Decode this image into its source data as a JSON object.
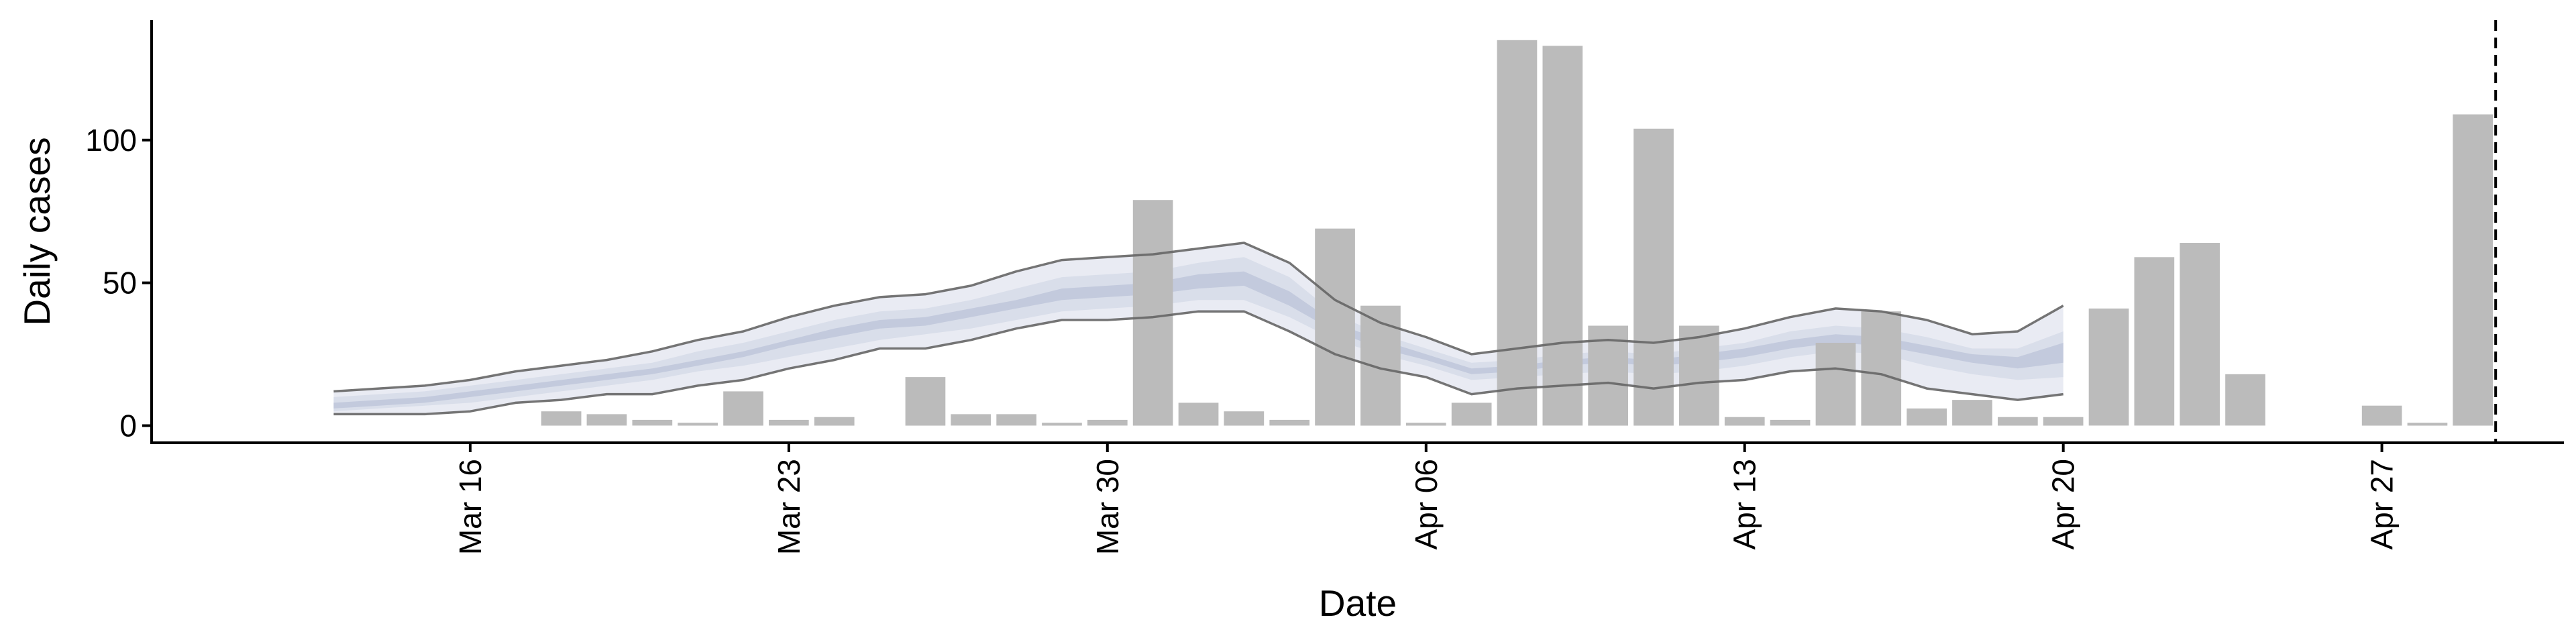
{
  "chart_data": {
    "type": "bar",
    "xlabel": "Date",
    "ylabel": "Daily cases",
    "x_range": [
      "2020-03-09",
      "2020-05-01"
    ],
    "ylim": [
      -6,
      142
    ],
    "y_ticks": [
      0,
      50,
      100
    ],
    "x_ticks": [
      {
        "date": "2020-03-16",
        "label": "Mar 16"
      },
      {
        "date": "2020-03-23",
        "label": "Mar 23"
      },
      {
        "date": "2020-03-30",
        "label": "Mar 30"
      },
      {
        "date": "2020-04-06",
        "label": "Apr 06"
      },
      {
        "date": "2020-04-13",
        "label": "Apr 13"
      },
      {
        "date": "2020-04-20",
        "label": "Apr 20"
      },
      {
        "date": "2020-04-27",
        "label": "Apr 27"
      }
    ],
    "bar_color": "#bbbbbb",
    "bars": [
      {
        "date": "2020-03-18",
        "value": 5
      },
      {
        "date": "2020-03-19",
        "value": 4
      },
      {
        "date": "2020-03-20",
        "value": 2
      },
      {
        "date": "2020-03-21",
        "value": 1
      },
      {
        "date": "2020-03-22",
        "value": 12
      },
      {
        "date": "2020-03-23",
        "value": 2
      },
      {
        "date": "2020-03-24",
        "value": 3
      },
      {
        "date": "2020-03-26",
        "value": 17
      },
      {
        "date": "2020-03-27",
        "value": 4
      },
      {
        "date": "2020-03-28",
        "value": 4
      },
      {
        "date": "2020-03-29",
        "value": 1
      },
      {
        "date": "2020-03-30",
        "value": 2
      },
      {
        "date": "2020-03-31",
        "value": 79
      },
      {
        "date": "2020-04-01",
        "value": 8
      },
      {
        "date": "2020-04-02",
        "value": 5
      },
      {
        "date": "2020-04-03",
        "value": 2
      },
      {
        "date": "2020-04-04",
        "value": 69
      },
      {
        "date": "2020-04-05",
        "value": 42
      },
      {
        "date": "2020-04-06",
        "value": 1
      },
      {
        "date": "2020-04-07",
        "value": 8
      },
      {
        "date": "2020-04-08",
        "value": 135
      },
      {
        "date": "2020-04-09",
        "value": 133
      },
      {
        "date": "2020-04-10",
        "value": 35
      },
      {
        "date": "2020-04-11",
        "value": 104
      },
      {
        "date": "2020-04-12",
        "value": 35
      },
      {
        "date": "2020-04-13",
        "value": 3
      },
      {
        "date": "2020-04-14",
        "value": 2
      },
      {
        "date": "2020-04-15",
        "value": 29
      },
      {
        "date": "2020-04-16",
        "value": 40
      },
      {
        "date": "2020-04-17",
        "value": 6
      },
      {
        "date": "2020-04-18",
        "value": 9
      },
      {
        "date": "2020-04-19",
        "value": 3
      },
      {
        "date": "2020-04-20",
        "value": 3
      },
      {
        "date": "2020-04-21",
        "value": 41
      },
      {
        "date": "2020-04-22",
        "value": 59
      },
      {
        "date": "2020-04-23",
        "value": 64
      },
      {
        "date": "2020-04-24",
        "value": 18
      },
      {
        "date": "2020-04-27",
        "value": 7
      },
      {
        "date": "2020-04-28",
        "value": 1
      },
      {
        "date": "2020-04-29",
        "value": 109
      }
    ],
    "band_dates": [
      "2020-03-13",
      "2020-03-14",
      "2020-03-15",
      "2020-03-16",
      "2020-03-17",
      "2020-03-18",
      "2020-03-19",
      "2020-03-20",
      "2020-03-21",
      "2020-03-22",
      "2020-03-23",
      "2020-03-24",
      "2020-03-25",
      "2020-03-26",
      "2020-03-27",
      "2020-03-28",
      "2020-03-29",
      "2020-03-30",
      "2020-03-31",
      "2020-04-01",
      "2020-04-02",
      "2020-04-03",
      "2020-04-04",
      "2020-04-05",
      "2020-04-06",
      "2020-04-07",
      "2020-04-08",
      "2020-04-09",
      "2020-04-10",
      "2020-04-11",
      "2020-04-12",
      "2020-04-13",
      "2020-04-14",
      "2020-04-15",
      "2020-04-16",
      "2020-04-17",
      "2020-04-18",
      "2020-04-19",
      "2020-04-20"
    ],
    "band_colors": {
      "outer": "#e9ebf3",
      "mid": "#d9deea",
      "inner": "#c3cadd"
    },
    "band_line_color": "#666666",
    "band_outer_lower": [
      4,
      4,
      4,
      5,
      8,
      9,
      11,
      11,
      14,
      16,
      20,
      23,
      27,
      27,
      30,
      34,
      37,
      37,
      38,
      40,
      40,
      33,
      25,
      20,
      17,
      11,
      13,
      14,
      15,
      13,
      15,
      16,
      19,
      20,
      18,
      13,
      11,
      9,
      11
    ],
    "band_outer_upper": [
      12,
      13,
      14,
      16,
      19,
      21,
      23,
      26,
      30,
      33,
      38,
      42,
      45,
      46,
      49,
      54,
      58,
      59,
      60,
      62,
      64,
      57,
      44,
      36,
      31,
      25,
      27,
      29,
      30,
      29,
      31,
      34,
      38,
      41,
      40,
      37,
      32,
      33,
      42
    ],
    "band_mid_lower": [
      5,
      6,
      7,
      8,
      10,
      12,
      14,
      16,
      19,
      21,
      24,
      27,
      30,
      32,
      34,
      37,
      40,
      41,
      42,
      44,
      44,
      38,
      30,
      25,
      21,
      16,
      17,
      18,
      19,
      18,
      19,
      21,
      24,
      26,
      25,
      21,
      18,
      16,
      17
    ],
    "band_mid_upper": [
      10,
      11,
      12,
      14,
      16,
      18,
      20,
      22,
      26,
      29,
      33,
      37,
      40,
      41,
      44,
      48,
      52,
      53,
      54,
      57,
      59,
      52,
      39,
      32,
      27,
      22,
      23,
      25,
      26,
      25,
      27,
      29,
      33,
      35,
      34,
      31,
      27,
      27,
      33
    ],
    "band_inner_lower": [
      6,
      7,
      8,
      10,
      12,
      14,
      16,
      18,
      21,
      24,
      28,
      31,
      34,
      35,
      38,
      41,
      44,
      45,
      46,
      48,
      49,
      42,
      33,
      27,
      23,
      18,
      19,
      21,
      22,
      21,
      22,
      24,
      27,
      29,
      28,
      25,
      22,
      20,
      22
    ],
    "band_inner_upper": [
      8,
      9,
      10,
      12,
      14,
      16,
      18,
      20,
      23,
      26,
      30,
      34,
      37,
      38,
      41,
      44,
      48,
      49,
      50,
      53,
      54,
      47,
      36,
      30,
      25,
      20,
      21,
      23,
      24,
      23,
      25,
      27,
      30,
      32,
      31,
      28,
      25,
      24,
      29
    ],
    "vline": {
      "date": "2020-04-29",
      "style": "dashed"
    },
    "grid": false
  }
}
